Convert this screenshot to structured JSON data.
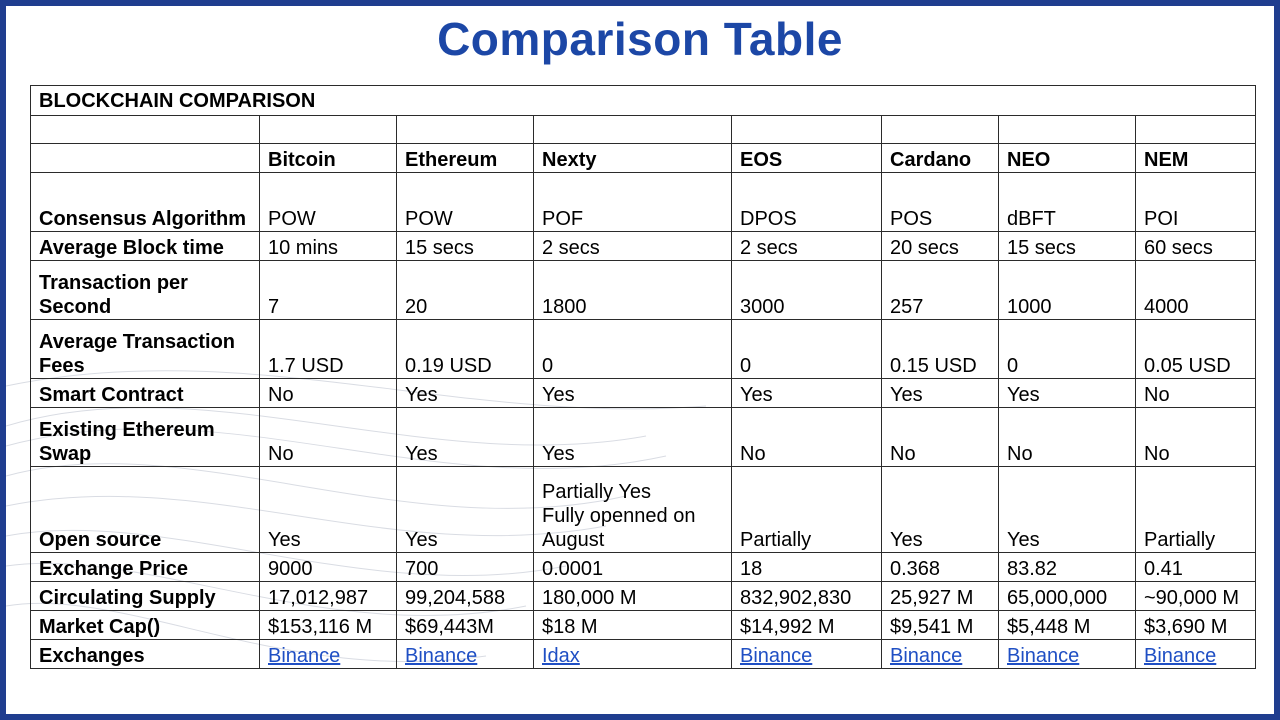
{
  "title": "Comparison Table",
  "table": {
    "caption": "BLOCKCHAIN COMPARISON",
    "columns": [
      "Bitcoin",
      "Ethereum",
      "Nexty",
      "EOS",
      "Cardano",
      "NEO",
      "NEM"
    ],
    "rows": [
      {
        "label": "Consensus Algorithm",
        "values": [
          "POW",
          "POW",
          "POF",
          "DPOS",
          "POS",
          "dBFT",
          "POI"
        ]
      },
      {
        "label": "Average Block time",
        "values": [
          "10 mins",
          "15 secs",
          "2 secs",
          "2 secs",
          "20 secs",
          "15 secs",
          "60 secs"
        ]
      },
      {
        "label": "Transaction per Second",
        "values": [
          "7",
          "20",
          "1800",
          "3000",
          "257",
          "1000",
          "4000"
        ]
      },
      {
        "label": "Average Transaction Fees",
        "values": [
          "1.7 USD",
          "0.19 USD",
          "0",
          "0",
          "0.15 USD",
          "0",
          "0.05 USD"
        ]
      },
      {
        "label": "Smart Contract",
        "values": [
          "No",
          "Yes",
          "Yes",
          "Yes",
          "Yes",
          "Yes",
          "No"
        ]
      },
      {
        "label": "Existing Ethereum Swap",
        "values": [
          "No",
          "Yes",
          "Yes",
          "No",
          "No",
          "No",
          "No"
        ]
      },
      {
        "label": "Open source",
        "values": [
          "Yes",
          "Yes",
          "Partially Yes\nFully openned on August",
          "Partially",
          "Yes",
          "Yes",
          "Partially"
        ]
      },
      {
        "label": "Exchange Price",
        "values": [
          "9000",
          "700",
          "0.0001",
          "18",
          "0.368",
          "83.82",
          "0.41"
        ]
      },
      {
        "label": "Circulating Supply",
        "values": [
          "17,012,987",
          "99,204,588",
          "180,000 M",
          "832,902,830",
          "25,927 M",
          "65,000,000",
          "~90,000 M"
        ]
      },
      {
        "label": "Market Cap()",
        "values": [
          "$153,116 M",
          "$69,443M",
          "$18 M",
          "$14,992 M",
          "$9,541 M",
          "$5,448 M",
          "$3,690 M"
        ]
      },
      {
        "label": "Exchanges",
        "values": [
          "Binance",
          "Binance",
          "Idax",
          "Binance",
          "Binance",
          "Binance",
          "Binance"
        ]
      }
    ]
  },
  "colors": {
    "frame": "#1f3d8f",
    "title": "#1c47a6",
    "link": "#1f4fc4"
  }
}
